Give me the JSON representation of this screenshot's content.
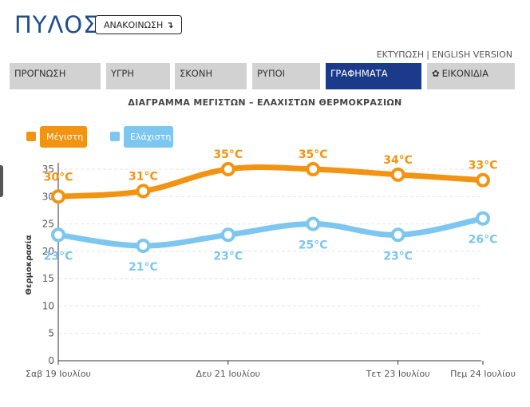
{
  "header": {
    "city": "ΠΥΛΟΣ",
    "announce_label": "ΑΝΑΚΟΙΝΩΣΗ",
    "announce_icon": "arrow-down-icon",
    "print_link": "ΕΚΤΥΠΩΣΗ",
    "separator": "|",
    "english_link": "ENGLISH VERSION"
  },
  "tabs": [
    {
      "label": "ΠΡΟΓΝΩΣΗ",
      "active": false
    },
    {
      "label": "ΥΓΡΗ",
      "active": false
    },
    {
      "label": "ΣΚΟΝΗ",
      "active": false
    },
    {
      "label": "ΡΥΠΟΙ",
      "active": false
    },
    {
      "label": "ΓΡΑΦΗΜΑΤΑ",
      "active": true
    },
    {
      "label": "ΕΙΚΟΝΙΔΙΑ",
      "active": false,
      "icon": "gear-icon"
    }
  ],
  "colors": {
    "max": "#f29411",
    "min": "#7cc6ef",
    "active_tab": "#1b3a8a",
    "city": "#1f4e8c"
  },
  "chart_data": {
    "type": "line",
    "title": "ΔΙΑΓΡΑΜΜΑ ΜΕΓΙΣΤΩΝ – ΕΛΑΧΙΣΤΩΝ ΘΕΡΜΟΚΡΑΣΙΩΝ",
    "ylabel": "Θερμοκρασία",
    "xlabel": "",
    "ylim": [
      0,
      35
    ],
    "yticks": [
      0,
      5,
      10,
      15,
      20,
      25,
      30,
      35
    ],
    "x_tick_labels": [
      "Σαβ 19 Ιουλίου",
      "Δευ 21 Ιουλίου",
      "Τετ 23 Ιουλίου",
      "Πεμ 24 Ιουλίου"
    ],
    "grid": true,
    "legend_position": "top-left",
    "series": [
      {
        "name": "Μέγιστη",
        "values": [
          30,
          31,
          35,
          35,
          34,
          33
        ],
        "labels": [
          "30°C",
          "31°C",
          "35°C",
          "35°C",
          "34°C",
          "33°C"
        ]
      },
      {
        "name": "Ελάχιστη",
        "values": [
          23,
          21,
          23,
          25,
          23,
          26
        ],
        "labels": [
          "23°C",
          "21°C",
          "23°C",
          "25°C",
          "23°C",
          "26°C"
        ]
      }
    ]
  }
}
